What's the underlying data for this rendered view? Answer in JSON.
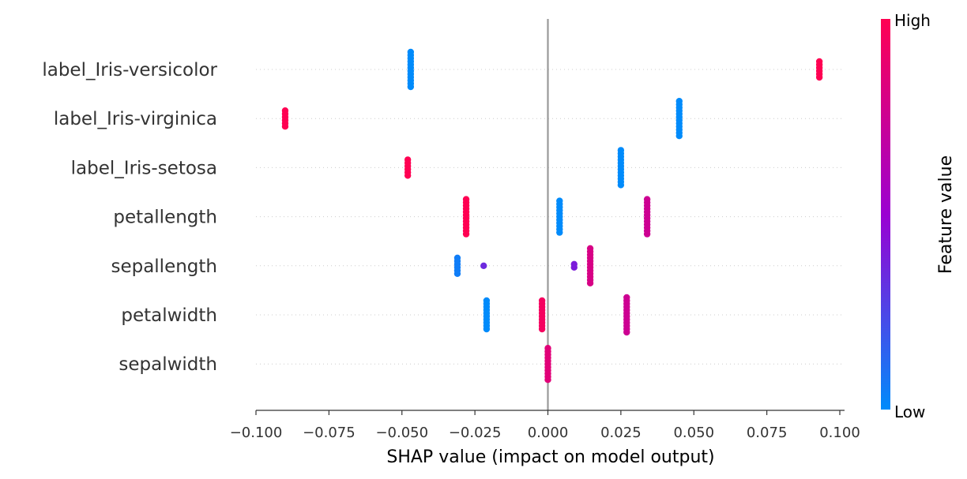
{
  "chart_data": {
    "type": "scatter",
    "subtype": "shap-beeswarm",
    "title": "",
    "xlabel": "SHAP value (impact on model output)",
    "xlim": [
      -0.1,
      0.102
    ],
    "xticks": [
      -0.1,
      -0.075,
      -0.05,
      -0.025,
      0.0,
      0.025,
      0.05,
      0.075,
      0.1
    ],
    "xtick_labels": [
      "−0.100",
      "−0.075",
      "−0.050",
      "−0.025",
      "0.000",
      "0.025",
      "0.050",
      "0.075",
      "0.100"
    ],
    "grid": false,
    "zero_line": true,
    "colorbar": {
      "title": "Feature value",
      "high_label": "High",
      "low_label": "Low",
      "low_color": "#008bfb",
      "mid_color": "#9b00d2",
      "high_color": "#ff0052"
    },
    "features": [
      {
        "name": "label_Iris-versicolor",
        "groups": [
          {
            "x": -0.047,
            "feature_value": 0.0,
            "count": 12
          },
          {
            "x": 0.093,
            "feature_value": 1.0,
            "count": 6
          }
        ]
      },
      {
        "name": "label_Iris-virginica",
        "groups": [
          {
            "x": -0.09,
            "feature_value": 1.0,
            "count": 6
          },
          {
            "x": 0.045,
            "feature_value": 0.0,
            "count": 12
          }
        ]
      },
      {
        "name": "label_Iris-setosa",
        "groups": [
          {
            "x": -0.048,
            "feature_value": 1.0,
            "count": 6
          },
          {
            "x": 0.025,
            "feature_value": 0.0,
            "count": 12
          }
        ]
      },
      {
        "name": "petallength",
        "groups": [
          {
            "x": -0.028,
            "feature_value": 1.0,
            "count": 12
          },
          {
            "x": 0.004,
            "feature_value": 0.0,
            "count": 11
          },
          {
            "x": 0.034,
            "feature_value": 0.75,
            "count": 12
          }
        ]
      },
      {
        "name": "sepallength",
        "groups": [
          {
            "x": -0.031,
            "feature_value": 0.05,
            "count": 6
          },
          {
            "x": -0.022,
            "feature_value": 0.35,
            "count": 1
          },
          {
            "x": 0.009,
            "feature_value": 0.4,
            "count": 2
          },
          {
            "x": 0.0145,
            "feature_value": 0.8,
            "count": 12
          }
        ]
      },
      {
        "name": "petalwidth",
        "groups": [
          {
            "x": -0.021,
            "feature_value": 0.0,
            "count": 10
          },
          {
            "x": -0.002,
            "feature_value": 0.95,
            "count": 10
          },
          {
            "x": 0.027,
            "feature_value": 0.75,
            "count": 12
          }
        ]
      },
      {
        "name": "sepalwidth",
        "groups": [
          {
            "x": 0.0,
            "feature_value": 0.85,
            "count": 11
          }
        ]
      }
    ]
  }
}
